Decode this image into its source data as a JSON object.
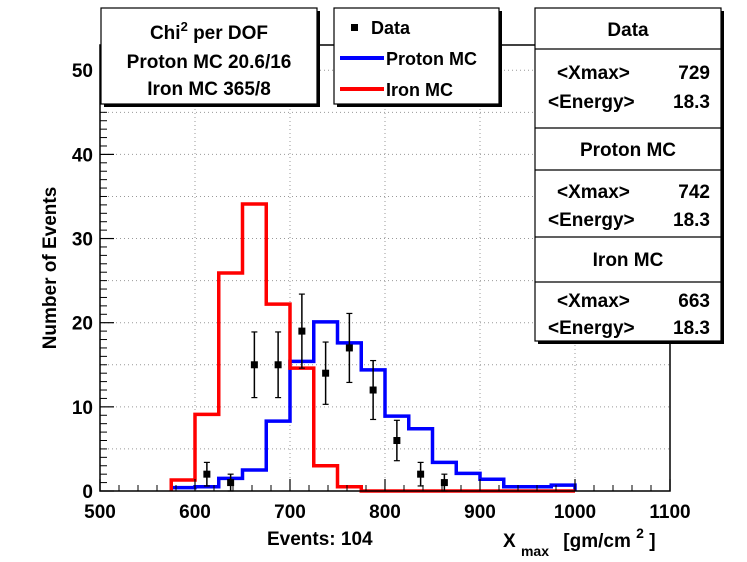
{
  "chart_data": {
    "type": "step-histogram",
    "xlabel_main": "X",
    "xlabel_sub": "max",
    "xlabel_unit_pre": "[gm/cm",
    "xlabel_unit_sup": "2",
    "xlabel_unit_post": "]",
    "ylabel": "Number of Events",
    "bottom_text": "Events: 104",
    "xlim": [
      500,
      1100
    ],
    "ylim": [
      0,
      53
    ],
    "xticks": [
      500,
      600,
      700,
      800,
      900,
      1000,
      1100
    ],
    "yticks": [
      0,
      10,
      20,
      30,
      40,
      50
    ],
    "grid": true,
    "chi_box": {
      "line1_main": "Chi",
      "line1_sup": "2",
      "line1_rest": " per DOF",
      "line2": "Proton MC 20.6/16",
      "line3": "Iron MC 365/8"
    },
    "legend": [
      {
        "label": "Data",
        "kind": "marker",
        "color": "#000000"
      },
      {
        "label": "Proton MC",
        "kind": "line",
        "color": "#0000ff"
      },
      {
        "label": "Iron MC",
        "kind": "line",
        "color": "#ff0000"
      }
    ],
    "stats": [
      {
        "title": "Data",
        "xmax_label": "<Xmax>",
        "xmax": "729",
        "energy_label": "<Energy>",
        "energy": "18.3"
      },
      {
        "title": "Proton MC",
        "xmax_label": "<Xmax>",
        "xmax": "742",
        "energy_label": "<Energy>",
        "energy": "18.3"
      },
      {
        "title": "Iron MC",
        "xmax_label": "<Xmax>",
        "xmax": "663",
        "energy_label": "<Energy>",
        "energy": "18.3"
      }
    ],
    "bin_edges": [
      575,
      600,
      625,
      650,
      675,
      700,
      725,
      750,
      775,
      800,
      825,
      850,
      875,
      900,
      925,
      950,
      975,
      1000
    ],
    "series": [
      {
        "name": "Proton MC",
        "color": "#0000ff",
        "values": [
          0.4,
          0.5,
          1.5,
          2.5,
          8.3,
          15.4,
          20.1,
          17.6,
          14.4,
          8.9,
          7.4,
          3.4,
          2.1,
          1.4,
          0.5,
          0.5,
          0.7
        ]
      },
      {
        "name": "Iron MC",
        "color": "#ff0000",
        "values": [
          1.3,
          9.1,
          25.9,
          34.1,
          22.2,
          14.6,
          3.0,
          0.5,
          0.0,
          0.0,
          0.0,
          0.0,
          0.0,
          0.0,
          0.0,
          0.0,
          0.0
        ]
      }
    ],
    "data_points": [
      {
        "x": 612.5,
        "y": 2,
        "err": 1.4
      },
      {
        "x": 637.5,
        "y": 1,
        "err": 1.0
      },
      {
        "x": 662.5,
        "y": 15,
        "err": 3.9
      },
      {
        "x": 687.5,
        "y": 15,
        "err": 3.9
      },
      {
        "x": 712.5,
        "y": 19,
        "err": 4.4
      },
      {
        "x": 737.5,
        "y": 14,
        "err": 3.7
      },
      {
        "x": 762.5,
        "y": 17,
        "err": 4.1
      },
      {
        "x": 787.5,
        "y": 12,
        "err": 3.5
      },
      {
        "x": 812.5,
        "y": 6,
        "err": 2.4
      },
      {
        "x": 837.5,
        "y": 2,
        "err": 1.4
      },
      {
        "x": 862.5,
        "y": 1,
        "err": 1.0
      }
    ]
  }
}
